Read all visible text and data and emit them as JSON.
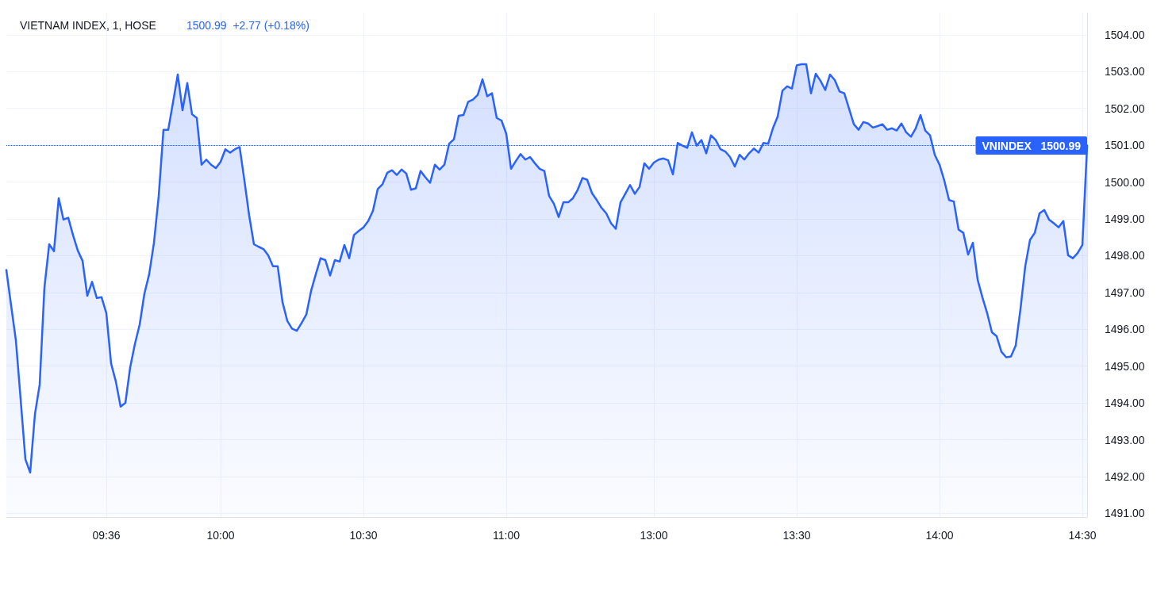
{
  "chart_data": {
    "type": "area",
    "title": "VIETNAM INDEX, 1, HOSE",
    "subtitle": "1500.99  +2.77 (+0.18%)",
    "categories": [
      null,
      null,
      null,
      null,
      null,
      null,
      null,
      null,
      null,
      null,
      null,
      null,
      null,
      null,
      null,
      null,
      null,
      null,
      null,
      null,
      null,
      "09:36",
      null,
      null,
      null,
      null,
      null,
      null,
      null,
      null,
      null,
      null,
      null,
      null,
      null,
      null,
      null,
      null,
      null,
      null,
      null,
      null,
      null,
      null,
      null,
      "10:00",
      null,
      null,
      null,
      null,
      null,
      null,
      null,
      null,
      null,
      null,
      null,
      null,
      null,
      null,
      null,
      null,
      null,
      null,
      null,
      null,
      null,
      null,
      null,
      null,
      null,
      null,
      null,
      null,
      null,
      "10:30",
      null,
      null,
      null,
      null,
      null,
      null,
      null,
      null,
      null,
      null,
      null,
      null,
      null,
      null,
      null,
      null,
      null,
      null,
      null,
      null,
      null,
      null,
      null,
      null,
      null,
      null,
      null,
      null,
      null,
      "11:00",
      null,
      null,
      null,
      null,
      null,
      null,
      null,
      null,
      null,
      null,
      null,
      null,
      null,
      null,
      null,
      null,
      null,
      null,
      null,
      null,
      null,
      null,
      null,
      null,
      null,
      null,
      null,
      null,
      null,
      null,
      "13:00",
      null,
      null,
      null,
      null,
      null,
      null,
      null,
      null,
      null,
      null,
      null,
      null,
      null,
      null,
      null,
      null,
      null,
      null,
      null,
      null,
      null,
      null,
      null,
      null,
      null,
      null,
      null,
      null,
      null,
      "13:30",
      null,
      null,
      null,
      null,
      null,
      null,
      null,
      null,
      null,
      null,
      null,
      null,
      null,
      null,
      null,
      null,
      null,
      null,
      null,
      null,
      null,
      null,
      null,
      null,
      null,
      null,
      null,
      null,
      null,
      "14:00",
      null,
      null,
      null,
      null,
      null,
      null,
      null,
      null,
      null,
      null,
      null,
      null,
      null,
      null,
      null,
      null,
      null,
      null,
      null,
      null,
      null,
      null,
      null,
      null,
      null,
      null,
      null,
      null,
      null,
      "14:30",
      null
    ],
    "series": [
      {
        "color": "#2962ff",
        "values": [
          1497.61,
          1496.65,
          1495.7,
          1494.1,
          1492.47,
          1492.11,
          1493.69,
          1494.5,
          1497.14,
          1498.31,
          1498.12,
          1499.56,
          1498.98,
          1499.03,
          1498.56,
          1498.14,
          1497.86,
          1496.91,
          1497.29,
          1496.85,
          1496.87,
          1496.44,
          1495.07,
          1494.58,
          1493.9,
          1494.0,
          1494.96,
          1495.6,
          1496.13,
          1496.97,
          1497.5,
          1498.35,
          1499.62,
          1501.42,
          1501.42,
          1502.16,
          1502.92,
          1501.95,
          1502.69,
          1501.84,
          1501.74,
          1500.47,
          1500.61,
          1500.47,
          1500.38,
          1500.55,
          1500.89,
          1500.8,
          1500.89,
          1500.95,
          1500.04,
          1499.09,
          1498.31,
          1498.24,
          1498.18,
          1498.01,
          1497.71,
          1497.71,
          1496.74,
          1496.23,
          1496.02,
          1495.96,
          1496.17,
          1496.4,
          1497.04,
          1497.5,
          1497.93,
          1497.88,
          1497.46,
          1497.88,
          1497.84,
          1498.29,
          1497.93,
          1498.56,
          1498.67,
          1498.77,
          1498.94,
          1499.22,
          1499.81,
          1499.94,
          1500.25,
          1500.32,
          1500.19,
          1500.34,
          1500.23,
          1499.79,
          1499.83,
          1500.3,
          1500.13,
          1499.98,
          1500.47,
          1500.34,
          1500.47,
          1501.04,
          1501.16,
          1501.8,
          1501.82,
          1502.18,
          1502.24,
          1502.37,
          1502.79,
          1502.33,
          1502.41,
          1501.74,
          1501.67,
          1501.31,
          1500.36,
          1500.57,
          1500.76,
          1500.61,
          1500.68,
          1500.51,
          1500.36,
          1500.3,
          1499.62,
          1499.41,
          1499.05,
          1499.45,
          1499.45,
          1499.56,
          1499.79,
          1500.11,
          1500.06,
          1499.7,
          1499.51,
          1499.3,
          1499.15,
          1498.88,
          1498.73,
          1499.45,
          1499.68,
          1499.92,
          1499.68,
          1499.87,
          1500.51,
          1500.36,
          1500.53,
          1500.61,
          1500.64,
          1500.59,
          1500.21,
          1501.06,
          1500.99,
          1500.93,
          1501.35,
          1500.99,
          1501.14,
          1500.78,
          1501.27,
          1501.14,
          1500.89,
          1500.83,
          1500.68,
          1500.42,
          1500.74,
          1500.61,
          1500.78,
          1500.91,
          1500.8,
          1501.06,
          1501.04,
          1501.46,
          1501.78,
          1502.48,
          1502.6,
          1502.54,
          1503.17,
          1503.2,
          1503.2,
          1502.41,
          1502.94,
          1502.75,
          1502.5,
          1502.92,
          1502.77,
          1502.46,
          1502.41,
          1501.99,
          1501.57,
          1501.42,
          1501.63,
          1501.59,
          1501.48,
          1501.52,
          1501.57,
          1501.42,
          1501.46,
          1501.4,
          1501.59,
          1501.35,
          1501.23,
          1501.46,
          1501.82,
          1501.4,
          1501.27,
          1500.74,
          1500.47,
          1500.04,
          1499.51,
          1499.47,
          1498.71,
          1498.62,
          1498.03,
          1498.35,
          1497.35,
          1496.87,
          1496.44,
          1495.92,
          1495.81,
          1495.39,
          1495.24,
          1495.26,
          1495.56,
          1496.55,
          1497.71,
          1498.43,
          1498.62,
          1499.15,
          1499.24,
          1498.98,
          1498.88,
          1498.77,
          1498.94,
          1498.01,
          1497.93,
          1498.07,
          1498.29,
          1500.99
        ]
      }
    ],
    "ylim": [
      1490.9,
      1504.6
    ],
    "yticks": [
      {
        "value": 1491,
        "label": "1491.00"
      },
      {
        "value": 1492,
        "label": "1492.00"
      },
      {
        "value": 1493,
        "label": "1493.00"
      },
      {
        "value": 1494,
        "label": "1494.00"
      },
      {
        "value": 1495,
        "label": "1495.00"
      },
      {
        "value": 1496,
        "label": "1496.00"
      },
      {
        "value": 1497,
        "label": "1497.00"
      },
      {
        "value": 1498,
        "label": "1498.00"
      },
      {
        "value": 1499,
        "label": "1499.00"
      },
      {
        "value": 1500,
        "label": "1500.00"
      },
      {
        "value": 1501,
        "label": "1501.00"
      },
      {
        "value": 1502,
        "label": "1502.00"
      },
      {
        "value": 1503,
        "label": "1503.00"
      },
      {
        "value": 1504,
        "label": "1504.00"
      }
    ],
    "ref_lines": [
      {
        "axis": "y",
        "value": 1500.99,
        "label": "VNINDEX   1500.99",
        "color": "#2962ff",
        "line_style": "dotted"
      }
    ],
    "grid": true,
    "marker": "none",
    "line_style": "solid"
  }
}
